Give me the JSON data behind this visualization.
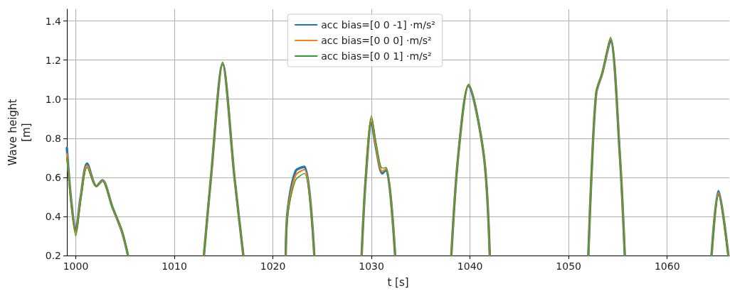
{
  "chart_data": {
    "type": "line",
    "xlabel": "t [s]",
    "ylabel": "Wave height\n[m]",
    "x": [
      999.1,
      999.5,
      1000,
      1000.5,
      1001.15,
      1002.1,
      1002.7,
      1003.7,
      1004.7,
      1005.3,
      1009,
      1013.0,
      1013.7,
      1014.9,
      1016.1,
      1017.0,
      1019,
      1021.3,
      1021.5,
      1022.3,
      1023.2,
      1024.2,
      1027,
      1029.0,
      1029.4,
      1030.0,
      1030.5,
      1031.1,
      1031.5,
      1032.4,
      1035,
      1038.1,
      1038.8,
      1039.85,
      1041.4,
      1042.0,
      1047,
      1052.0,
      1052.3,
      1052.8,
      1053.4,
      1054.25,
      1055.2,
      1055.7,
      1060,
      1064.5,
      1065.2,
      1066.2
    ],
    "series": [
      {
        "name": "acc bias=[0 0 -1] ·m/s²",
        "color": "#1f77b4",
        "values": [
          0.75,
          0.5,
          0.33,
          0.5,
          0.67,
          0.555,
          0.585,
          0.45,
          0.32,
          0.2,
          null,
          0.2,
          0.59,
          1.18,
          0.6,
          0.2,
          null,
          0.2,
          0.43,
          0.632,
          0.654,
          0.2,
          null,
          0.2,
          0.58,
          0.88,
          0.74,
          0.62,
          0.64,
          0.2,
          null,
          0.2,
          0.71,
          1.07,
          0.71,
          0.2,
          null,
          0.2,
          0.59,
          1.03,
          1.13,
          1.3,
          0.71,
          0.2,
          null,
          0.2,
          0.53,
          0.2
        ]
      },
      {
        "name": "acc bias=[0 0 0] ·m/s²",
        "color": "#ff7f0e",
        "values": [
          0.72,
          0.49,
          0.315,
          0.49,
          0.66,
          0.554,
          0.582,
          0.45,
          0.325,
          0.2,
          null,
          0.2,
          0.59,
          1.185,
          0.6,
          0.2,
          null,
          0.2,
          0.415,
          0.61,
          0.64,
          0.2,
          null,
          0.2,
          0.59,
          0.9,
          0.75,
          0.63,
          0.645,
          0.2,
          null,
          0.2,
          0.71,
          1.073,
          0.71,
          0.2,
          null,
          0.2,
          0.59,
          1.033,
          1.13,
          1.31,
          0.71,
          0.2,
          null,
          0.2,
          0.52,
          0.2
        ]
      },
      {
        "name": "acc bias=[0 0 1] ·m/s²",
        "color": "#2ca02c",
        "values": [
          0.7,
          0.48,
          0.3,
          0.48,
          0.65,
          0.553,
          0.58,
          0.45,
          0.33,
          0.2,
          null,
          0.2,
          0.59,
          1.19,
          0.6,
          0.2,
          null,
          0.2,
          0.4,
          0.585,
          0.62,
          0.2,
          null,
          0.2,
          0.6,
          0.914,
          0.77,
          0.647,
          0.65,
          0.2,
          null,
          0.2,
          0.71,
          1.076,
          0.71,
          0.2,
          null,
          0.2,
          0.59,
          1.036,
          1.133,
          1.317,
          0.71,
          0.2,
          null,
          0.2,
          0.51,
          0.2
        ]
      }
    ],
    "xlim": [
      999.1,
      1066.3
    ],
    "xticks": [
      1000,
      1010,
      1020,
      1030,
      1040,
      1050,
      1060
    ],
    "ylim": [
      0.2,
      1.46
    ],
    "yticks": [
      {
        "value": 0.2,
        "label": "0.2"
      },
      {
        "value": 0.4,
        "label": "0.4"
      },
      {
        "value": 0.6,
        "label": "0.6"
      },
      {
        "value": 0.8,
        "label": "0.8"
      },
      {
        "value": 1.0,
        "label": "1.0"
      },
      {
        "value": 1.2,
        "label": "1.2"
      },
      {
        "value": 1.4,
        "label": "1.4"
      }
    ],
    "grid": true,
    "legend": "top",
    "line_style": "solid",
    "marker": "none"
  }
}
